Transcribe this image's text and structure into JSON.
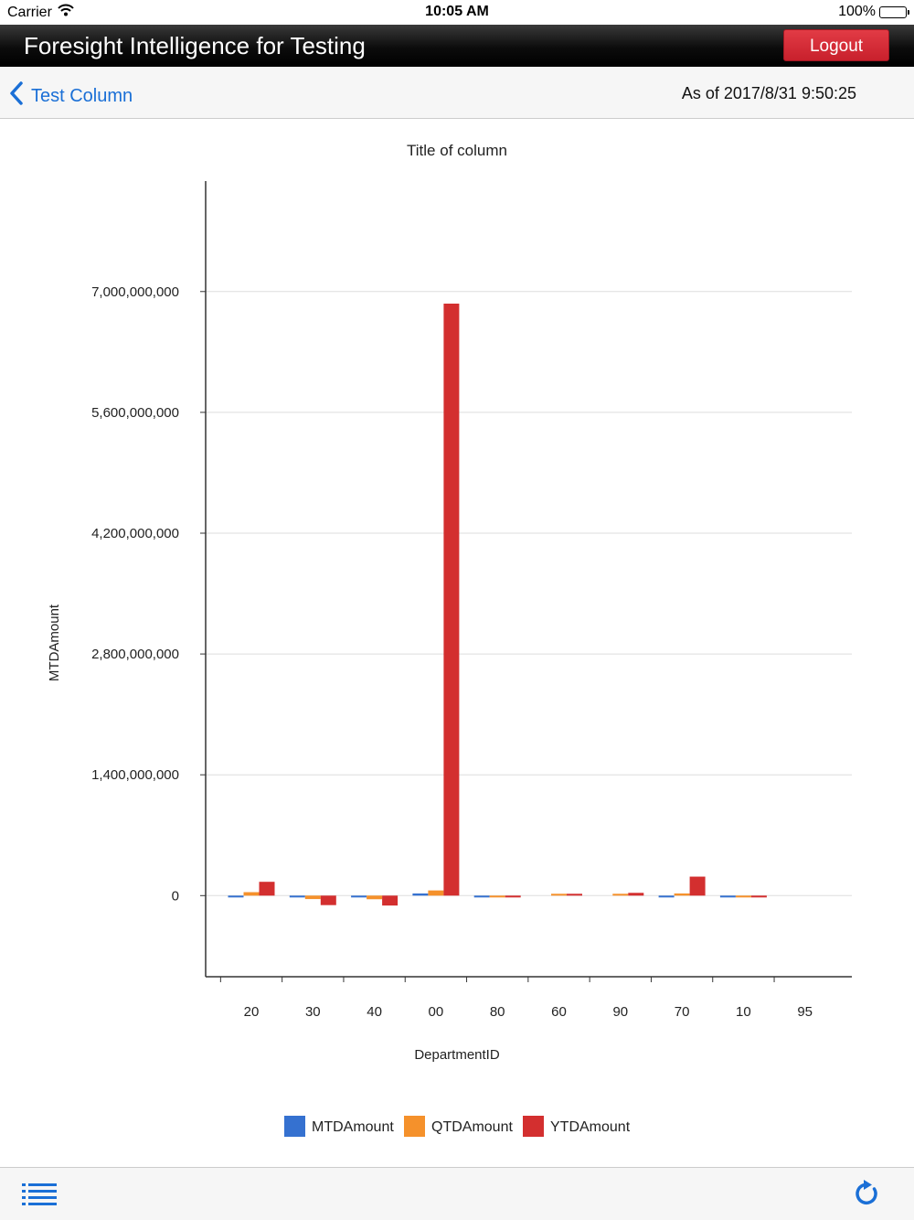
{
  "status_bar": {
    "carrier": "Carrier",
    "time": "10:05 AM",
    "battery": "100%"
  },
  "header": {
    "title": "Foresight Intelligence for Testing",
    "logout_label": "Logout"
  },
  "nav": {
    "back_label": "Test Column",
    "as_of": "As of 2017/8/31 9:50:25"
  },
  "icons": {
    "wifi": "wifi-icon",
    "battery": "battery-icon",
    "back": "chevron-left-icon",
    "menu": "list-icon",
    "refresh": "refresh-icon"
  },
  "colors": {
    "accent": "#1a6fd6",
    "logout": "#d62b35",
    "mtd": "#3571d0",
    "qtd": "#f5912b",
    "ytd": "#d32f2f"
  },
  "chart_data": {
    "type": "bar",
    "title": "Title of column",
    "xlabel": "DepartmentID",
    "ylabel": "MTDAmount",
    "categories": [
      "20",
      "30",
      "40",
      "00",
      "80",
      "60",
      "90",
      "70",
      "10",
      "95"
    ],
    "series": [
      {
        "name": "MTDAmount",
        "color": "#3571d0",
        "values": [
          -12000000,
          -20000000,
          -18000000,
          25000000,
          -4000000,
          0,
          0,
          -10000000,
          -3000000,
          0
        ]
      },
      {
        "name": "QTDAmount",
        "color": "#f5912b",
        "values": [
          40000000,
          -40000000,
          -42000000,
          60000000,
          -6000000,
          8000000,
          17000000,
          25000000,
          -5000000,
          0
        ]
      },
      {
        "name": "YTDAmount",
        "color": "#d32f2f",
        "values": [
          160000000,
          -110000000,
          -115000000,
          6860000000,
          -12000000,
          20000000,
          32000000,
          220000000,
          -8000000,
          0
        ]
      }
    ],
    "yticks": [
      0,
      1400000000,
      2800000000,
      4200000000,
      5600000000,
      7000000000
    ],
    "ytick_labels": [
      "0",
      "1,400,000,000",
      "2,800,000,000",
      "4,200,000,000",
      "5,600,000,000",
      "7,000,000,000"
    ],
    "ylim": [
      -940000000,
      8280000000
    ],
    "grid": true,
    "legend_position": "bottom"
  }
}
